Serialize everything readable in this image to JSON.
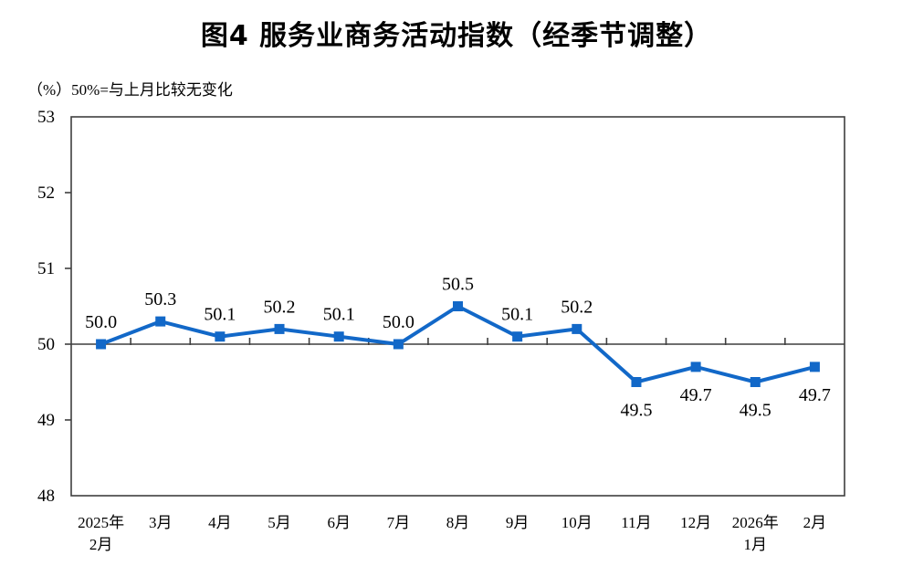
{
  "title": "图4  服务业商务活动指数（经季节调整）",
  "subtitle": "（%）50%=与上月比较无变化",
  "chart_data": {
    "type": "line",
    "categories": [
      "2025年\n2月",
      "3月",
      "4月",
      "5月",
      "6月",
      "7月",
      "8月",
      "9月",
      "10月",
      "11月",
      "12月",
      "2026年\n1月",
      "2月"
    ],
    "values": [
      50.0,
      50.3,
      50.1,
      50.2,
      50.1,
      50.0,
      50.5,
      50.1,
      50.2,
      49.5,
      49.7,
      49.5,
      49.7
    ],
    "title": "图4  服务业商务活动指数（经季节调整）",
    "xlabel": "",
    "ylabel": "（%）50%=与上月比较无变化",
    "ylim": [
      48,
      53
    ],
    "yticks": [
      48,
      49,
      50,
      51,
      52,
      53
    ],
    "reference_line": 50,
    "grid": false,
    "legend": "none",
    "data_labels": true,
    "marker": "square",
    "line_color": "#1268C8",
    "axis_color": "#3f3f3f",
    "text_color": "#000000"
  }
}
